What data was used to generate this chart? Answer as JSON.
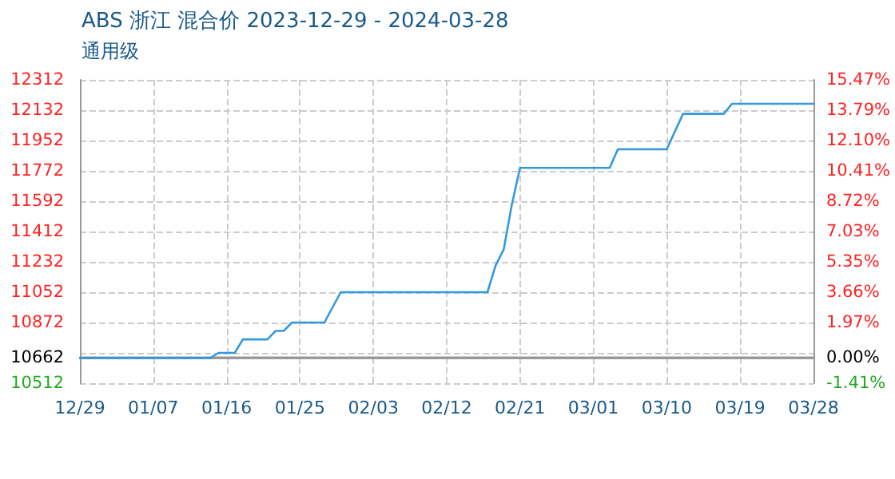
{
  "chart_data": {
    "type": "line",
    "title": "ABS 浙江 混合价 2023-12-29 - 2024-03-28",
    "subtitle": "通用级",
    "x": [
      "2023-12-29",
      "2024-01-14",
      "2024-01-15",
      "2024-01-17",
      "2024-01-18",
      "2024-01-21",
      "2024-01-22",
      "2024-01-23",
      "2024-01-24",
      "2024-01-28",
      "2024-01-30",
      "2024-02-17",
      "2024-02-18",
      "2024-02-19",
      "2024-02-20",
      "2024-02-21",
      "2024-03-03",
      "2024-03-04",
      "2024-03-10",
      "2024-03-12",
      "2024-03-17",
      "2024-03-18",
      "2024-03-28"
    ],
    "series": [
      {
        "color": "#3399dd",
        "values": [
          10662,
          10662,
          10692,
          10692,
          10772,
          10772,
          10822,
          10822,
          10872,
          10872,
          11052,
          11052,
          11210,
          11306,
          11573,
          11790,
          11790,
          11900,
          11900,
          12110,
          12110,
          12170,
          12170
        ]
      }
    ],
    "xlim": [
      "2023-12-29",
      "2024-03-28"
    ],
    "xticks": [
      {
        "value": "2023-12-29",
        "label": "12/29"
      },
      {
        "value": "2024-01-07",
        "label": "01/07"
      },
      {
        "value": "2024-01-16",
        "label": "01/16"
      },
      {
        "value": "2024-01-25",
        "label": "01/25"
      },
      {
        "value": "2024-02-03",
        "label": "02/03"
      },
      {
        "value": "2024-02-12",
        "label": "02/12"
      },
      {
        "value": "2024-02-21",
        "label": "02/21"
      },
      {
        "value": "2024-03-01",
        "label": "03/01"
      },
      {
        "value": "2024-03-10",
        "label": "03/10"
      },
      {
        "value": "2024-03-19",
        "label": "03/19"
      },
      {
        "value": "2024-03-28",
        "label": "03/28"
      }
    ],
    "ylim": [
      10512,
      12312
    ],
    "yticks": [
      10512,
      10662,
      {
        "value": 10692,
        "label": null
      },
      10872,
      11052,
      11232,
      11412,
      11592,
      11772,
      11952,
      12132,
      12312
    ],
    "y2lim": [
      -1.41,
      15.47
    ],
    "y2ticks": [
      {
        "value": -1.41,
        "label": "-1.41%"
      },
      {
        "value": 0,
        "label": "0.00%"
      },
      {
        "value": 1.97,
        "label": "1.97%"
      },
      {
        "value": 3.66,
        "label": "3.66%"
      },
      {
        "value": 5.35,
        "label": "5.35%"
      },
      {
        "value": 7.03,
        "label": "7.03%"
      },
      {
        "value": 8.72,
        "label": "8.72%"
      },
      {
        "value": 10.41,
        "label": "10.41%"
      },
      {
        "value": 12.1,
        "label": "12.10%"
      },
      {
        "value": 13.79,
        "label": "13.79%"
      },
      {
        "value": 15.47,
        "label": "15.47%"
      }
    ],
    "ref_lines": [
      {
        "axis": "y",
        "value": 10662,
        "color": "#999999"
      }
    ],
    "grid": true,
    "marker": "none",
    "line_style": "solid"
  }
}
